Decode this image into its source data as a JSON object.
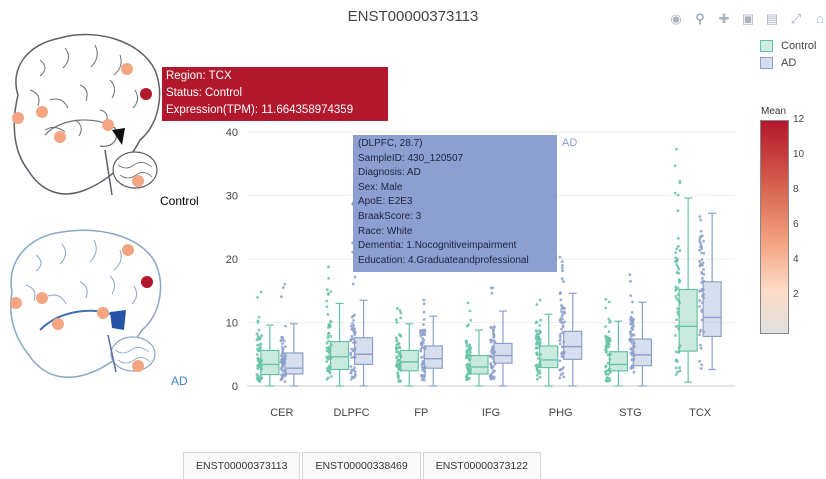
{
  "title": "ENST00000373113",
  "modebar": {
    "icons": [
      "camera-icon",
      "zoom-icon",
      "pan-icon",
      "zoom-in-icon",
      "zoom-out-icon",
      "autoscale-icon",
      "home-icon"
    ]
  },
  "brains": {
    "control_label": "Control",
    "ad_label": "AD"
  },
  "hover_region": {
    "line1": "Region: TCX",
    "line2": "Status: Control",
    "line3": "Expression(TPM): 11.664358974359"
  },
  "hover_sample": {
    "header": "(DLPFC, 28.7)",
    "sample_id": "SampleID: 430_120507",
    "diagnosis": "Diagnosis: AD",
    "sex": "Sex: Male",
    "apoe": "ApoE: E2E3",
    "braak": "BraakScore: 3",
    "race": "Race: White",
    "dementia": "Dementia: 1.Nocognitiveimpairment",
    "education": "Education: 4.Graduateandprofessional",
    "series_tag": "AD"
  },
  "legend": {
    "items": [
      {
        "label": "Control",
        "color": "#66c2a5"
      },
      {
        "label": "AD",
        "color": "#8da0cb"
      }
    ]
  },
  "colorbar": {
    "title": "Mean",
    "ticks": [
      "12",
      "10",
      "8",
      "6",
      "4",
      "2"
    ],
    "range": [
      0,
      12
    ]
  },
  "tabs": [
    "ENST00000373113",
    "ENST00000338469",
    "ENST00000373122"
  ],
  "chart_data": {
    "type": "box",
    "title": "ENST00000373113",
    "categories": [
      "CER",
      "DLPFC",
      "FP",
      "IFG",
      "PHG",
      "STG",
      "TCX"
    ],
    "ylim": [
      0,
      42
    ],
    "yticks": [
      0,
      10,
      20,
      30,
      40
    ],
    "grid": true,
    "legend_position": "top-right",
    "series": [
      {
        "name": "Control",
        "color": "#66c2a5",
        "boxes": [
          {
            "low": 0,
            "q1": 1.8,
            "median": 3.4,
            "q3": 5.6,
            "high": 9.6
          },
          {
            "low": 0,
            "q1": 2.6,
            "median": 4.6,
            "q3": 7.0,
            "high": 13.0
          },
          {
            "low": 0,
            "q1": 2.4,
            "median": 3.8,
            "q3": 5.6,
            "high": 9.8
          },
          {
            "low": 0,
            "q1": 1.9,
            "median": 3.0,
            "q3": 4.8,
            "high": 8.8
          },
          {
            "low": 0,
            "q1": 2.9,
            "median": 4.1,
            "q3": 6.3,
            "high": 11.3
          },
          {
            "low": 0,
            "q1": 2.4,
            "median": 3.4,
            "q3": 5.4,
            "high": 10.2
          },
          {
            "low": 0.6,
            "q1": 5.5,
            "median": 9.4,
            "q3": 15.2,
            "high": 29.6
          }
        ]
      },
      {
        "name": "AD",
        "color": "#8da0cb",
        "boxes": [
          {
            "low": 0,
            "q1": 1.9,
            "median": 2.8,
            "q3": 5.2,
            "high": 9.8
          },
          {
            "low": 0,
            "q1": 3.4,
            "median": 5.0,
            "q3": 7.6,
            "high": 13.5
          },
          {
            "low": 0,
            "q1": 2.8,
            "median": 4.3,
            "q3": 6.3,
            "high": 11.0
          },
          {
            "low": 0,
            "q1": 3.6,
            "median": 4.8,
            "q3": 6.7,
            "high": 11.8
          },
          {
            "low": 0,
            "q1": 4.2,
            "median": 6.2,
            "q3": 8.6,
            "high": 14.6
          },
          {
            "low": 0,
            "q1": 3.2,
            "median": 4.9,
            "q3": 7.4,
            "high": 13.2
          },
          {
            "low": 2.6,
            "q1": 7.8,
            "median": 10.8,
            "q3": 16.4,
            "high": 27.2
          }
        ]
      }
    ],
    "point_spread_max": [
      [
        15.5,
        16.2
      ],
      [
        19.4,
        23.0
      ],
      [
        13.0,
        14.5
      ],
      [
        13.5,
        28.7
      ],
      [
        14.8,
        20.5
      ],
      [
        14.0,
        19.7
      ],
      [
        38.0,
        27.2
      ]
    ]
  }
}
